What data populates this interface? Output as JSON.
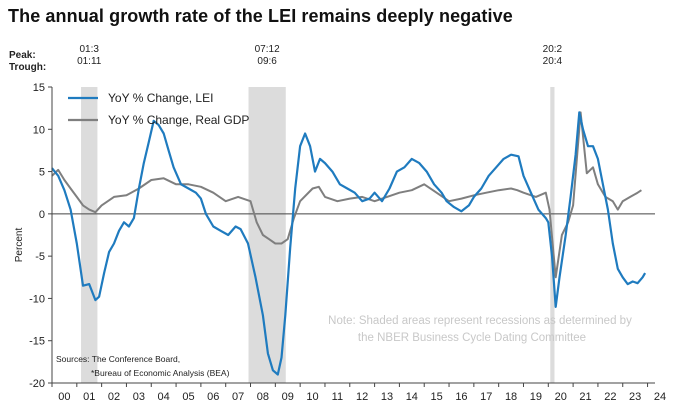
{
  "title": "The annual growth rate of the LEI remains deeply negative",
  "peak_label": "Peak:",
  "trough_label": "Trough:",
  "chart_data": {
    "type": "line",
    "xlim": [
      2000.0,
      2024.3
    ],
    "ylim": [
      -20,
      15
    ],
    "yticks": [
      -20,
      -15,
      -10,
      -5,
      0,
      5,
      10,
      15
    ],
    "ytick_labels": [
      "-20",
      "-15",
      "-10",
      "-5",
      "0",
      "5",
      "10",
      "15"
    ],
    "ylabel": "Percent",
    "xtick_labels": [
      "00",
      "01",
      "02",
      "03",
      "04",
      "05",
      "06",
      "07",
      "08",
      "09",
      "10",
      "11",
      "12",
      "13",
      "14",
      "15",
      "16",
      "17",
      "18",
      "19",
      "20",
      "21",
      "22",
      "23",
      "24"
    ],
    "recessions": [
      {
        "start": 2001.17,
        "end": 2001.83,
        "peak": "01:3",
        "trough": "01:11"
      },
      {
        "start": 2007.92,
        "end": 2009.42,
        "peak": "07:12",
        "trough": "09:6"
      },
      {
        "start": 2020.08,
        "end": 2020.25,
        "peak": "20:2",
        "trough": "20:4"
      }
    ],
    "series": [
      {
        "name": "YoY % Change, LEI",
        "color": "#1f7bbf",
        "points": [
          [
            2000.0,
            5.4
          ],
          [
            2000.25,
            4.5
          ],
          [
            2000.5,
            2.8
          ],
          [
            2000.75,
            0.5
          ],
          [
            2001.0,
            -3.5
          ],
          [
            2001.25,
            -8.5
          ],
          [
            2001.5,
            -8.3
          ],
          [
            2001.75,
            -10.2
          ],
          [
            2001.9,
            -9.8
          ],
          [
            2002.1,
            -7.0
          ],
          [
            2002.3,
            -4.5
          ],
          [
            2002.5,
            -3.5
          ],
          [
            2002.7,
            -2.0
          ],
          [
            2002.9,
            -1.0
          ],
          [
            2003.1,
            -1.5
          ],
          [
            2003.3,
            -0.5
          ],
          [
            2003.5,
            3.0
          ],
          [
            2003.7,
            6.0
          ],
          [
            2003.9,
            8.5
          ],
          [
            2004.1,
            11.0
          ],
          [
            2004.3,
            10.5
          ],
          [
            2004.5,
            9.5
          ],
          [
            2004.7,
            7.5
          ],
          [
            2004.9,
            5.5
          ],
          [
            2005.2,
            3.5
          ],
          [
            2005.5,
            3.0
          ],
          [
            2005.8,
            2.5
          ],
          [
            2006.0,
            1.8
          ],
          [
            2006.2,
            0.0
          ],
          [
            2006.5,
            -1.5
          ],
          [
            2006.8,
            -2.0
          ],
          [
            2007.1,
            -2.5
          ],
          [
            2007.4,
            -1.5
          ],
          [
            2007.6,
            -1.8
          ],
          [
            2007.9,
            -3.5
          ],
          [
            2008.2,
            -7.5
          ],
          [
            2008.5,
            -12.0
          ],
          [
            2008.7,
            -16.5
          ],
          [
            2008.9,
            -18.5
          ],
          [
            2009.1,
            -19.0
          ],
          [
            2009.25,
            -17.0
          ],
          [
            2009.4,
            -12.0
          ],
          [
            2009.6,
            -4.0
          ],
          [
            2009.8,
            3.0
          ],
          [
            2010.0,
            8.0
          ],
          [
            2010.2,
            9.5
          ],
          [
            2010.4,
            8.0
          ],
          [
            2010.6,
            5.0
          ],
          [
            2010.8,
            6.5
          ],
          [
            2011.0,
            6.0
          ],
          [
            2011.3,
            5.0
          ],
          [
            2011.6,
            3.5
          ],
          [
            2011.9,
            3.0
          ],
          [
            2012.2,
            2.5
          ],
          [
            2012.5,
            1.5
          ],
          [
            2012.8,
            1.8
          ],
          [
            2013.0,
            2.5
          ],
          [
            2013.3,
            1.5
          ],
          [
            2013.6,
            3.0
          ],
          [
            2013.9,
            5.0
          ],
          [
            2014.2,
            5.5
          ],
          [
            2014.5,
            6.5
          ],
          [
            2014.8,
            6.0
          ],
          [
            2015.1,
            5.0
          ],
          [
            2015.4,
            3.5
          ],
          [
            2015.7,
            2.5
          ],
          [
            2015.9,
            1.5
          ],
          [
            2016.2,
            0.8
          ],
          [
            2016.5,
            0.3
          ],
          [
            2016.8,
            1.0
          ],
          [
            2017.0,
            2.0
          ],
          [
            2017.3,
            3.0
          ],
          [
            2017.6,
            4.5
          ],
          [
            2017.9,
            5.5
          ],
          [
            2018.2,
            6.5
          ],
          [
            2018.5,
            7.0
          ],
          [
            2018.8,
            6.8
          ],
          [
            2019.0,
            4.5
          ],
          [
            2019.3,
            2.5
          ],
          [
            2019.6,
            0.5
          ],
          [
            2019.9,
            -0.5
          ],
          [
            2020.0,
            -1.0
          ],
          [
            2020.15,
            -5.0
          ],
          [
            2020.3,
            -11.0
          ],
          [
            2020.45,
            -7.5
          ],
          [
            2020.7,
            -2.5
          ],
          [
            2020.9,
            2.0
          ],
          [
            2021.1,
            7.0
          ],
          [
            2021.25,
            12.0
          ],
          [
            2021.4,
            10.0
          ],
          [
            2021.6,
            8.0
          ],
          [
            2021.8,
            8.0
          ],
          [
            2022.0,
            6.5
          ],
          [
            2022.2,
            3.5
          ],
          [
            2022.4,
            0.5
          ],
          [
            2022.6,
            -3.5
          ],
          [
            2022.8,
            -6.5
          ],
          [
            2023.0,
            -7.5
          ],
          [
            2023.2,
            -8.3
          ],
          [
            2023.4,
            -8.0
          ],
          [
            2023.6,
            -8.2
          ],
          [
            2023.8,
            -7.5
          ],
          [
            2023.9,
            -7.0
          ]
        ]
      },
      {
        "name": "YoY % Change, Real GDP",
        "color": "#7f7f7f",
        "points": [
          [
            2000.0,
            4.5
          ],
          [
            2000.25,
            5.2
          ],
          [
            2000.5,
            4.0
          ],
          [
            2000.75,
            3.0
          ],
          [
            2001.0,
            2.0
          ],
          [
            2001.25,
            1.0
          ],
          [
            2001.5,
            0.5
          ],
          [
            2001.75,
            0.2
          ],
          [
            2002.0,
            1.0
          ],
          [
            2002.5,
            2.0
          ],
          [
            2003.0,
            2.2
          ],
          [
            2003.5,
            3.0
          ],
          [
            2004.0,
            4.0
          ],
          [
            2004.5,
            4.2
          ],
          [
            2005.0,
            3.5
          ],
          [
            2005.5,
            3.5
          ],
          [
            2006.0,
            3.2
          ],
          [
            2006.5,
            2.5
          ],
          [
            2007.0,
            1.5
          ],
          [
            2007.5,
            2.0
          ],
          [
            2008.0,
            1.5
          ],
          [
            2008.25,
            -1.0
          ],
          [
            2008.5,
            -2.5
          ],
          [
            2008.75,
            -3.0
          ],
          [
            2009.0,
            -3.5
          ],
          [
            2009.25,
            -3.5
          ],
          [
            2009.5,
            -3.0
          ],
          [
            2009.75,
            -0.5
          ],
          [
            2010.0,
            1.5
          ],
          [
            2010.5,
            3.0
          ],
          [
            2010.75,
            3.2
          ],
          [
            2011.0,
            2.0
          ],
          [
            2011.5,
            1.5
          ],
          [
            2012.0,
            1.8
          ],
          [
            2012.5,
            2.0
          ],
          [
            2013.0,
            1.5
          ],
          [
            2013.5,
            2.0
          ],
          [
            2014.0,
            2.5
          ],
          [
            2014.5,
            2.8
          ],
          [
            2015.0,
            3.5
          ],
          [
            2015.5,
            2.5
          ],
          [
            2016.0,
            1.5
          ],
          [
            2016.5,
            1.8
          ],
          [
            2017.0,
            2.2
          ],
          [
            2017.5,
            2.5
          ],
          [
            2018.0,
            2.8
          ],
          [
            2018.5,
            3.0
          ],
          [
            2018.75,
            2.8
          ],
          [
            2019.0,
            2.5
          ],
          [
            2019.5,
            2.0
          ],
          [
            2019.9,
            2.5
          ],
          [
            2020.05,
            0.5
          ],
          [
            2020.3,
            -7.5
          ],
          [
            2020.55,
            -2.5
          ],
          [
            2020.8,
            -1.0
          ],
          [
            2021.0,
            1.0
          ],
          [
            2021.3,
            12.0
          ],
          [
            2021.55,
            4.8
          ],
          [
            2021.8,
            5.5
          ],
          [
            2022.0,
            3.5
          ],
          [
            2022.3,
            2.0
          ],
          [
            2022.6,
            1.5
          ],
          [
            2022.8,
            0.5
          ],
          [
            2023.0,
            1.5
          ],
          [
            2023.3,
            2.0
          ],
          [
            2023.6,
            2.5
          ],
          [
            2023.75,
            2.8
          ]
        ]
      }
    ],
    "note": "Note: Shaded areas represent recessions as determined by the NBER Business Cycle Dating Committee",
    "note_lines": [
      "Note: Shaded areas represent recessions as determined by",
      "the NBER Business Cycle Dating Committee"
    ],
    "sources_lines": [
      "Sources: The Conference Board,",
      "*Bureau of Economic Analysis (BEA)"
    ],
    "legend_placement": "top-left"
  }
}
